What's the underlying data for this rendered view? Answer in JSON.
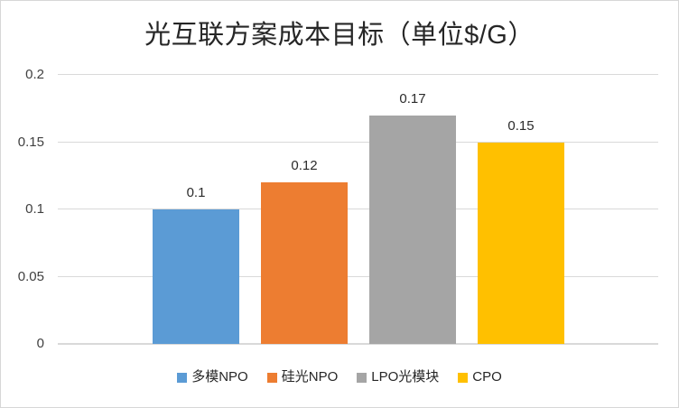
{
  "window": {
    "background": "#FFFFFF",
    "border_color": "#D7D7D7"
  },
  "chart_data": {
    "type": "bar",
    "title": "光互联方案成本目标（单位$/G）",
    "categories": [
      "多模NPO",
      "硅光NPO",
      "LPO光模块",
      "CPO"
    ],
    "values": [
      0.1,
      0.12,
      0.17,
      0.15
    ],
    "data_labels": [
      "0.1",
      "0.12",
      "0.17",
      "0.15"
    ],
    "bar_colors": [
      "#5B9BD5",
      "#ED7D31",
      "#A5A5A5",
      "#FFC000"
    ],
    "xlabel": "",
    "ylabel": "",
    "ylim": [
      0,
      0.2
    ],
    "yticks": [
      0,
      0.05,
      0.1,
      0.15,
      0.2
    ],
    "ytick_labels": [
      "0",
      "0.05",
      "0.1",
      "0.15",
      "0.2"
    ],
    "grid": true,
    "legend_position": "bottom",
    "legend": [
      {
        "label": "多模NPO",
        "color": "#5B9BD5"
      },
      {
        "label": "硅光NPO",
        "color": "#ED7D31"
      },
      {
        "label": "LPO光模块",
        "color": "#A5A5A5"
      },
      {
        "label": "CPO",
        "color": "#FFC000"
      }
    ],
    "colors": {
      "gridline": "#D9D9D9",
      "axis_line": "#D9D9D9",
      "tick_text": "#404040",
      "data_label_text": "#2B2B2B",
      "title_text": "#262626"
    }
  }
}
